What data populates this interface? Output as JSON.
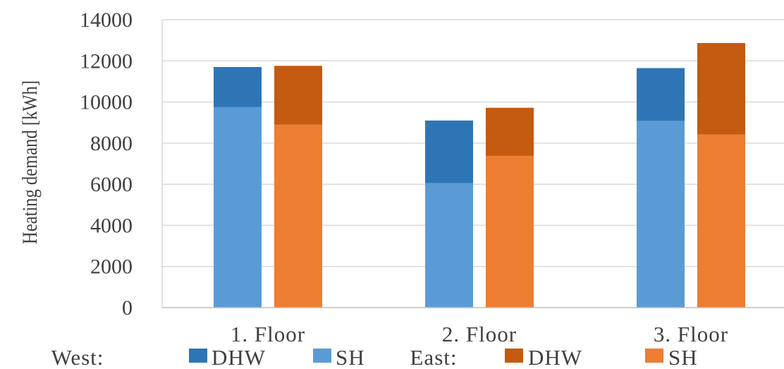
{
  "chart_data": {
    "type": "bar",
    "stacked": true,
    "ylabel": "Heating demand [kWh]",
    "ylim": [
      0,
      14000
    ],
    "yticks": [
      0,
      2000,
      4000,
      6000,
      8000,
      10000,
      12000,
      14000
    ],
    "grid": true,
    "categories": [
      "1. Floor",
      "2. Floor",
      "3. Floor"
    ],
    "groups": [
      {
        "name": "West:",
        "series": [
          {
            "name": "SH",
            "color": "#5b9bd5",
            "values": [
              9750,
              6050,
              9080
            ]
          },
          {
            "name": "DHW",
            "color": "#2e75b6",
            "values": [
              1950,
              3050,
              2570
            ]
          }
        ]
      },
      {
        "name": "East:",
        "series": [
          {
            "name": "SH",
            "color": "#ed7d31",
            "values": [
              8900,
              7380,
              8420
            ]
          },
          {
            "name": "DHW",
            "color": "#c55a11",
            "values": [
              2860,
              2340,
              4450
            ]
          }
        ]
      }
    ],
    "legend": {
      "placement": "bottom",
      "items": [
        {
          "group": "West:",
          "label": "DHW",
          "color": "#2e75b6"
        },
        {
          "group": "",
          "label": "SH",
          "color": "#5b9bd5"
        },
        {
          "group": "East:",
          "label": "DHW",
          "color": "#c55a11"
        },
        {
          "group": "",
          "label": "SH",
          "color": "#ed7d31"
        }
      ]
    }
  }
}
